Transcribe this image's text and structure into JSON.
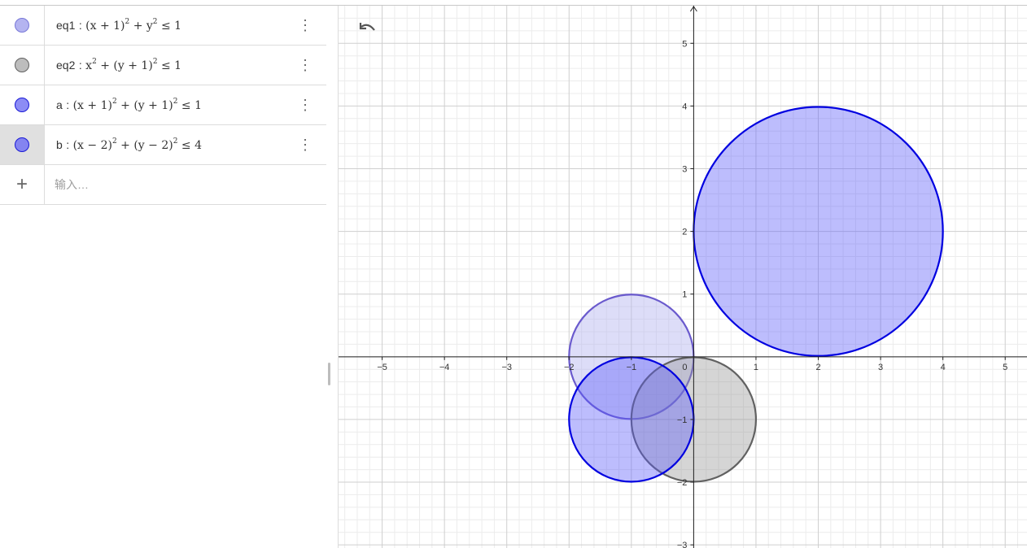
{
  "algebra": {
    "items": [
      {
        "label": "eq1",
        "sep": ":",
        "color": "#b4b4f0",
        "border": "#7878d8",
        "parts": [
          "(x + 1)",
          "2",
          " + y",
          "2",
          " ≤ 1"
        ]
      },
      {
        "label": "eq2",
        "sep": ":",
        "color": "#bdbdbd",
        "border": "#616161",
        "parts": [
          "x",
          "2",
          " + (y + 1)",
          "2",
          " ≤ 1"
        ]
      },
      {
        "label": "a",
        "sep": ":",
        "color": "#8c8cf5",
        "border": "#1a1ad6",
        "parts": [
          "(x + 1)",
          "2",
          " + (y + 1)",
          "2",
          " ≤ 1"
        ]
      },
      {
        "label": "b",
        "sep": ":",
        "color": "#8484f0",
        "border": "#1a1ad6",
        "parts": [
          "(x − 2)",
          "2",
          " + (y − 2)",
          "2",
          " ≤ 4"
        ]
      }
    ],
    "input_placeholder": "输入…",
    "menu_icon": "⋮",
    "plus_icon": "+"
  },
  "graphics": {
    "x_ticks": [
      "−5",
      "−4",
      "−3",
      "−2",
      "−1",
      "0",
      "1",
      "2",
      "3",
      "4",
      "5"
    ],
    "y_ticks": [
      "5",
      "4",
      "3",
      "2",
      "1",
      "−1",
      "−2",
      "−3"
    ],
    "x_range": [
      -5.7,
      5.35
    ],
    "y_range": [
      -3.05,
      5.6
    ],
    "circles": [
      {
        "name": "eq1",
        "cx": -1,
        "cy": 0,
        "r": 1,
        "fill": "rgba(180,180,240,0.45)",
        "stroke": "#6a5acd"
      },
      {
        "name": "eq2",
        "cx": 0,
        "cy": -1,
        "r": 1,
        "fill": "rgba(150,150,150,0.4)",
        "stroke": "#616161"
      },
      {
        "name": "a",
        "cx": -1,
        "cy": -1,
        "r": 1,
        "fill": "rgba(90,90,250,0.4)",
        "stroke": "#0000e0"
      },
      {
        "name": "b",
        "cx": 2,
        "cy": 2,
        "r": 2,
        "fill": "rgba(90,90,250,0.4)",
        "stroke": "#0000e0"
      }
    ]
  }
}
